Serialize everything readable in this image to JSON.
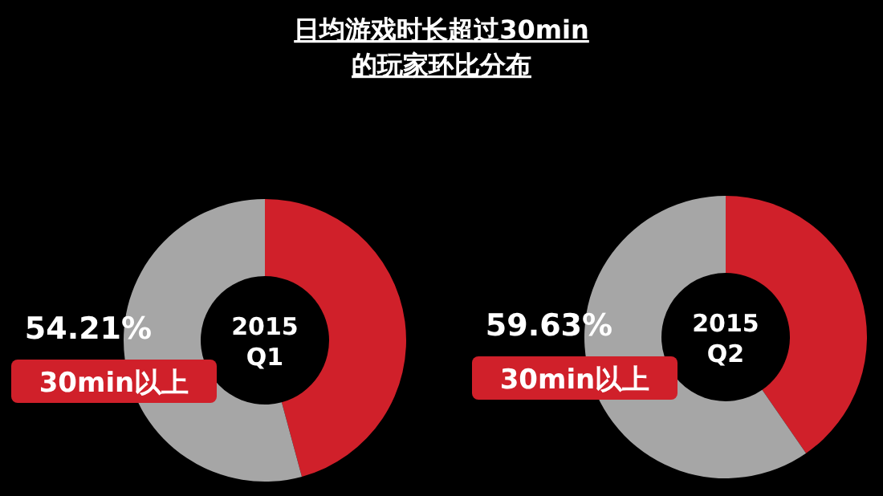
{
  "chart_data": [
    {
      "type": "donut",
      "title": "日均游戏时长超过30min\n的玩家环比分布",
      "categories": [
        null,
        "30min以上"
      ],
      "values": [
        45.79,
        54.21
      ],
      "colors": [
        "#d0202a",
        "#a6a6a6"
      ],
      "value_labels": [
        null,
        "54.21%"
      ],
      "annotations": [
        "2015",
        "Q1"
      ]
    },
    {
      "type": "donut",
      "categories": [
        null,
        "30min以上"
      ],
      "values": [
        40.37,
        59.63
      ],
      "colors": [
        "#d0202a",
        "#a6a6a6"
      ],
      "value_labels": [
        null,
        "59.63%"
      ],
      "annotations": [
        "2015",
        "Q2"
      ]
    }
  ]
}
